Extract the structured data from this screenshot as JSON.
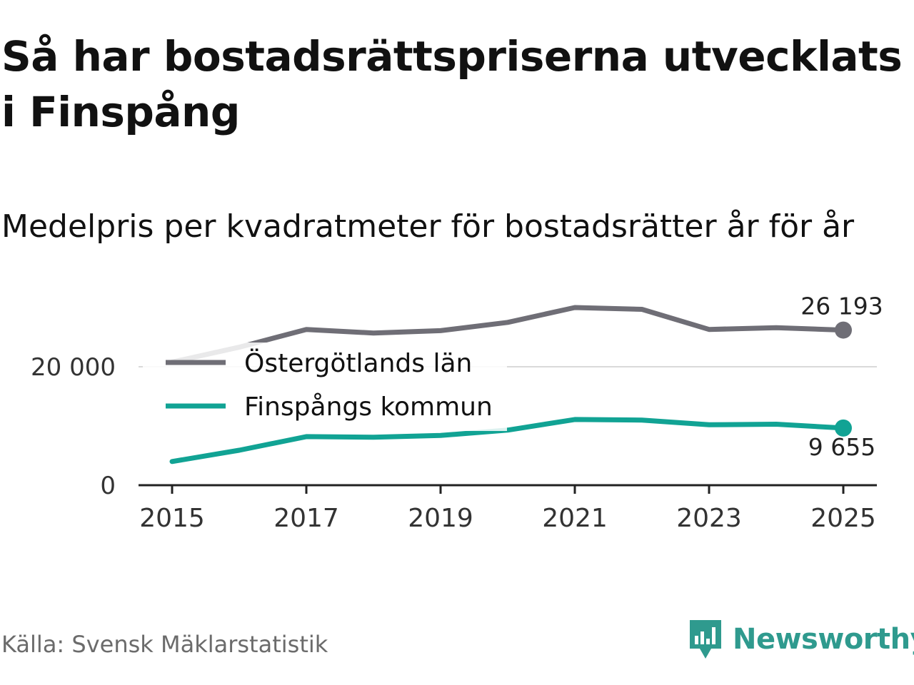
{
  "title": "Så har bostadsrättspriserna utvecklats i Finspång",
  "subtitle": "Medelpris per kvadratmeter för bostadsrätter år för år",
  "source": "Källa: Svensk Mäklarstatistik",
  "brand": {
    "name": "Newsworthy",
    "color": "#2f9a8e"
  },
  "chart_data": {
    "type": "line",
    "title": "Medelpris per kvadratmeter för bostadsrätter år för år",
    "xlabel": "",
    "ylabel": "",
    "x": [
      2015,
      2016,
      2017,
      2018,
      2019,
      2020,
      2021,
      2022,
      2023,
      2024,
      2025
    ],
    "xticks": [
      "2015",
      "2017",
      "2019",
      "2021",
      "2023",
      "2025"
    ],
    "xtick_values": [
      2015,
      2017,
      2019,
      2021,
      2023,
      2025
    ],
    "yticks": [
      "0",
      "20 000"
    ],
    "ytick_values": [
      0,
      20000
    ],
    "ylim": [
      0,
      30000
    ],
    "grid": true,
    "legend_position": "top-left",
    "series": [
      {
        "name": "Östergötlands län",
        "color": "#6f6e76",
        "values": [
          20800,
          23300,
          26300,
          25700,
          26100,
          27500,
          30000,
          29700,
          26300,
          26600,
          26193
        ],
        "end_label": "26 193"
      },
      {
        "name": "Finspångs kommun",
        "color": "#11a394",
        "values": [
          4000,
          5900,
          8200,
          8100,
          8400,
          9300,
          11100,
          11000,
          10200,
          10300,
          9655
        ],
        "end_label": "9 655"
      }
    ]
  }
}
